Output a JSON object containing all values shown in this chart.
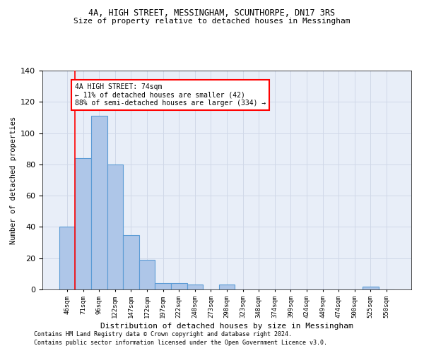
{
  "title_line1": "4A, HIGH STREET, MESSINGHAM, SCUNTHORPE, DN17 3RS",
  "title_line2": "Size of property relative to detached houses in Messingham",
  "xlabel": "Distribution of detached houses by size in Messingham",
  "ylabel": "Number of detached properties",
  "footer_line1": "Contains HM Land Registry data © Crown copyright and database right 2024.",
  "footer_line2": "Contains public sector information licensed under the Open Government Licence v3.0.",
  "bar_categories": [
    "46sqm",
    "71sqm",
    "96sqm",
    "122sqm",
    "147sqm",
    "172sqm",
    "197sqm",
    "222sqm",
    "248sqm",
    "273sqm",
    "298sqm",
    "323sqm",
    "348sqm",
    "374sqm",
    "399sqm",
    "424sqm",
    "449sqm",
    "474sqm",
    "500sqm",
    "525sqm",
    "550sqm"
  ],
  "bar_values": [
    40,
    84,
    111,
    80,
    35,
    19,
    4,
    4,
    3,
    0,
    3,
    0,
    0,
    0,
    0,
    0,
    0,
    0,
    0,
    2,
    0
  ],
  "bar_color": "#aec6e8",
  "bar_edgecolor": "#5b9bd5",
  "grid_color": "#d0d8e8",
  "background_color": "#e8eef8",
  "vline_color": "red",
  "vline_xindex": 0.5,
  "annotation_text": "4A HIGH STREET: 74sqm\n← 11% of detached houses are smaller (42)\n88% of semi-detached houses are larger (334) →",
  "ylim": [
    0,
    140
  ],
  "yticks": [
    0,
    20,
    40,
    60,
    80,
    100,
    120,
    140
  ]
}
